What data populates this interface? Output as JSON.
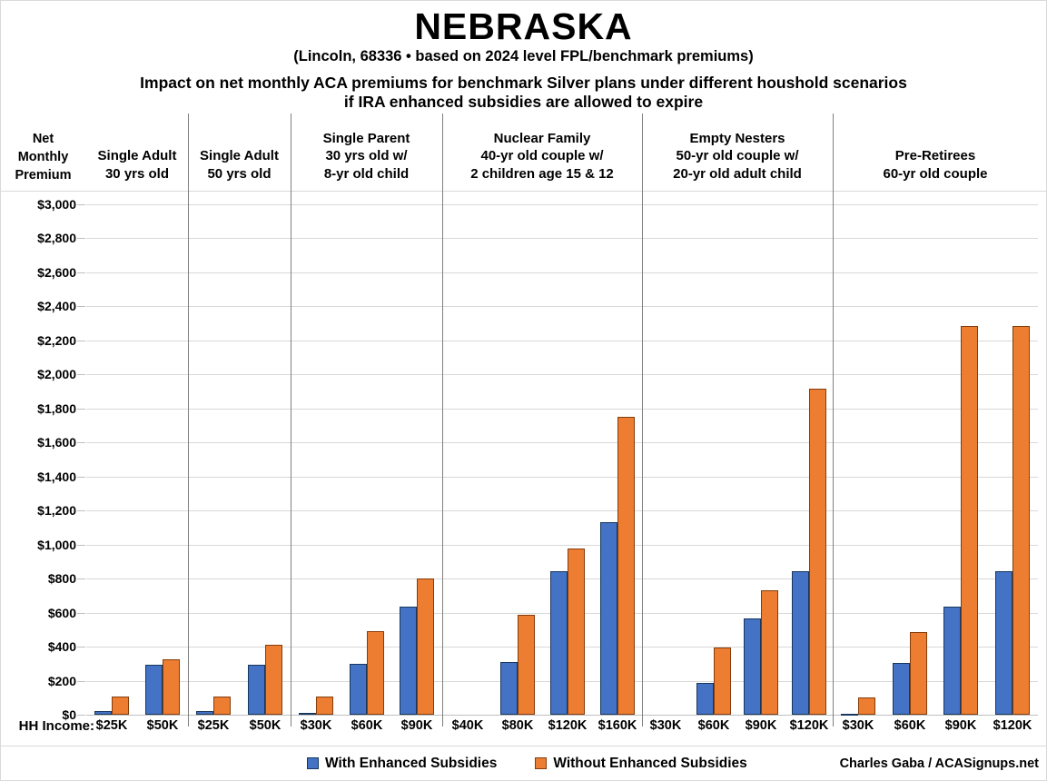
{
  "title": "NEBRASKA",
  "subtitle": "(Lincoln, 68336 • based on 2024 level FPL/benchmark premiums)",
  "heading_line1": "Impact on net monthly ACA premiums for benchmark Silver plans under different houshold scenarios",
  "heading_line2": "if IRA enhanced subsidies are allowed to expire",
  "y_axis_title": {
    "line1": "Net",
    "line2": "Monthly",
    "line3": "Premium"
  },
  "x_axis_label": "HH Income:",
  "credit": "Charles Gaba / ACASignups.net",
  "legend": [
    {
      "label": "With Enhanced Subsidies",
      "color": "#4472C4",
      "border": "#17375E"
    },
    {
      "label": "Without Enhanced Subsidies",
      "color": "#ED7D31",
      "border": "#843C0C"
    }
  ],
  "colors": {
    "with_fill": "#4472C4",
    "with_border": "#17375E",
    "without_fill": "#ED7D31",
    "without_border": "#843C0C",
    "gridline": "#d9d9d9",
    "divider": "#808080"
  },
  "chart_data": {
    "type": "bar",
    "title": "Impact on net monthly ACA premiums for benchmark Silver plans under different houshold scenarios if IRA enhanced subsidies are allowed to expire",
    "ylabel": "Net Monthly Premium",
    "xlabel": "HH Income:",
    "ylim": [
      0,
      3000
    ],
    "ytick_interval": 200,
    "ytick_labels": [
      "$0",
      "$200",
      "$400",
      "$600",
      "$800",
      "$1,000",
      "$1,200",
      "$1,400",
      "$1,600",
      "$1,800",
      "$2,000",
      "$2,200",
      "$2,400",
      "$2,600",
      "$2,800",
      "$3,000"
    ],
    "grid": true,
    "legend_position": "bottom",
    "series_names": [
      "With Enhanced Subsidies",
      "Without Enhanced Subsidies"
    ],
    "groups": [
      {
        "label_lines": [
          "Single Adult",
          "30 yrs old"
        ],
        "categories": [
          "$25K",
          "$50K"
        ],
        "series": [
          {
            "name": "With Enhanced Subsidies",
            "values": [
              20,
              295
            ]
          },
          {
            "name": "Without Enhanced Subsidies",
            "values": [
              105,
              325
            ]
          }
        ]
      },
      {
        "label_lines": [
          "Single Adult",
          "50 yrs old"
        ],
        "categories": [
          "$25K",
          "$50K"
        ],
        "series": [
          {
            "name": "With Enhanced Subsidies",
            "values": [
              20,
              295
            ]
          },
          {
            "name": "Without Enhanced Subsidies",
            "values": [
              105,
              410
            ]
          }
        ]
      },
      {
        "label_lines": [
          "Single Parent",
          "30 yrs old w/",
          "8-yr old child"
        ],
        "categories": [
          "$30K",
          "$60K",
          "$90K"
        ],
        "series": [
          {
            "name": "With Enhanced Subsidies",
            "values": [
              10,
              300,
              635
            ]
          },
          {
            "name": "Without Enhanced Subsidies",
            "values": [
              105,
              490,
              800
            ]
          }
        ]
      },
      {
        "label_lines": [
          "Nuclear Family",
          "40-yr old couple w/",
          "2 children age 15 & 12"
        ],
        "categories": [
          "$40K",
          "$80K",
          "$120K",
          "$160K"
        ],
        "series": [
          {
            "name": "With Enhanced Subsidies",
            "values": [
              0,
              310,
              845,
              1130
            ]
          },
          {
            "name": "Without Enhanced Subsidies",
            "values": [
              0,
              585,
              975,
              1750
            ]
          }
        ]
      },
      {
        "label_lines": [
          "Empty Nesters",
          "50-yr old couple w/",
          "20-yr old adult child"
        ],
        "categories": [
          "$30K",
          "$60K",
          "$90K",
          "$120K"
        ],
        "series": [
          {
            "name": "With Enhanced Subsidies",
            "values": [
              0,
              185,
              565,
              845
            ]
          },
          {
            "name": "Without Enhanced Subsidies",
            "values": [
              0,
              395,
              730,
              1915
            ]
          }
        ]
      },
      {
        "label_lines": [
          "Pre-Retirees",
          "60-yr old couple"
        ],
        "categories": [
          "$30K",
          "$60K",
          "$90K",
          "$120K"
        ],
        "series": [
          {
            "name": "With Enhanced Subsidies",
            "values": [
              5,
              305,
              635,
              845
            ]
          },
          {
            "name": "Without Enhanced Subsidies",
            "values": [
              100,
              485,
              2285,
              2285
            ]
          }
        ]
      }
    ]
  }
}
